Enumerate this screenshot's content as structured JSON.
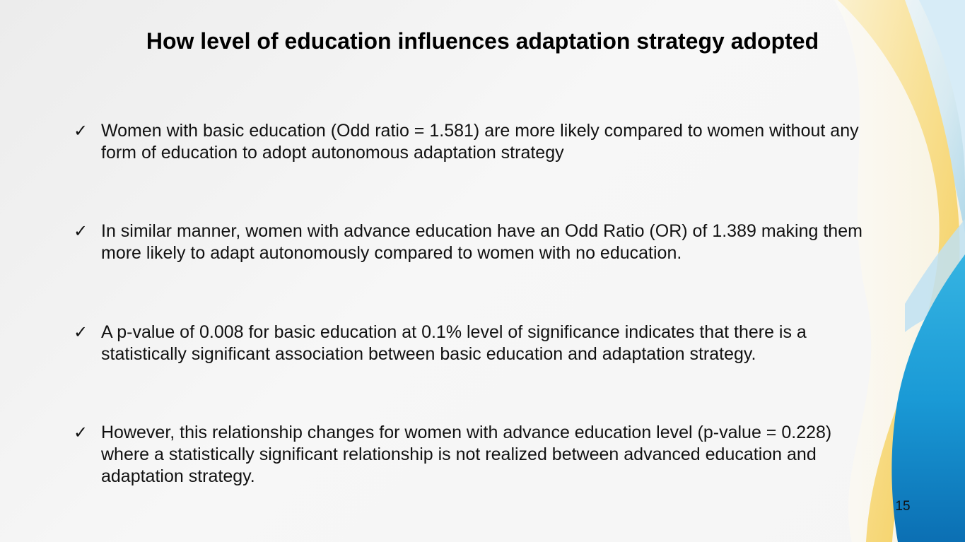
{
  "slide": {
    "title": "How level of education influences adaptation strategy adopted",
    "bullets": [
      {
        "marker": "✓",
        "text": "Women with basic education (Odd ratio = 1.581) are more likely compared to women without any form of education to adopt autonomous adaptation strategy"
      },
      {
        "marker": "✓",
        "text": "In similar manner, women with advance education have an Odd Ratio (OR) of 1.389 making them more likely to adapt autonomously compared to women with no education."
      },
      {
        "marker": "✓",
        "text": "A p-value of 0.008 for basic education at 0.1% level of significance indicates that there is a statistically significant association between basic education and adaptation strategy."
      },
      {
        "marker": "✓",
        "text": "However, this relationship changes for women with advance education level (p-value = 0.228) where a statistically significant relationship is not realized between advanced education and adaptation strategy."
      }
    ],
    "page_number": "15"
  },
  "theme": {
    "background": "#f5f5f5",
    "accent_yellow": "#f7d76b",
    "accent_light_blue": "#a9d8ee",
    "accent_blue": "#1a9ad6",
    "accent_dark_blue": "#0b6fb3"
  }
}
